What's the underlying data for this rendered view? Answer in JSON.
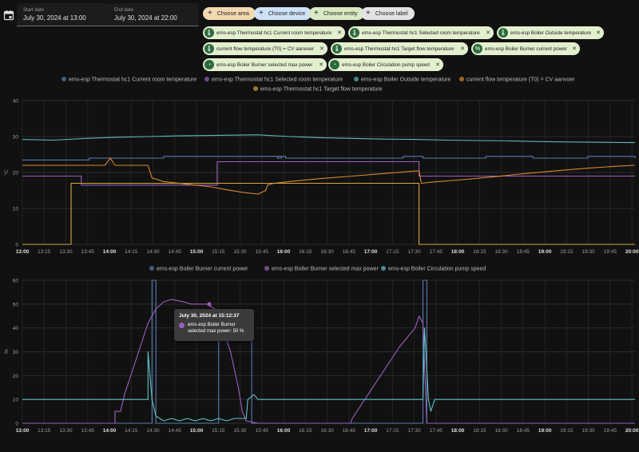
{
  "date_range": {
    "start_label": "Start date",
    "start_value": "July 30, 2024 at 13:00",
    "end_label": "End date",
    "end_value": "July 30, 2024 at 22:00"
  },
  "buttons": {
    "choose_area": "Choose area",
    "choose_device": "Choose device",
    "choose_entity": "Choose entity",
    "choose_label": "Choose label"
  },
  "entities": [
    {
      "label": "ems-esp Thermostat hc1 Current room temperature",
      "icon": "thermometer-icon"
    },
    {
      "label": "ems-esp Thermostat hc1 Selected room temperature",
      "icon": "thermometer-icon"
    },
    {
      "label": "ems-esp Boiler Outside temperature",
      "icon": "thermometer-icon"
    },
    {
      "label": "current flow temperature (T0) = CV aanvoer",
      "icon": "thermometer-icon"
    },
    {
      "label": "ems-esp Thermostat hc1 Target flow temperature",
      "icon": "thermometer-icon"
    },
    {
      "label": "ems-esp Boiler Burner current power",
      "icon": "percent-icon"
    },
    {
      "label": "ems-esp Boiler Burner selected max power",
      "icon": "gauge-icon"
    },
    {
      "label": "ems-esp Boiler Circulation pump speed",
      "icon": "gauge-icon"
    }
  ],
  "colors": {
    "current_room": "#5a7bb0",
    "selected_room": "#9c5fbf",
    "outside": "#5fb8b8",
    "flow": "#d9882b",
    "target_flow": "#d4a93c",
    "burner_power": "#5a7bb0",
    "max_power": "#9c5fbf",
    "pump_speed": "#5fc4c4"
  },
  "chart_data": [
    {
      "type": "line",
      "ylabel": "°C",
      "ylim": [
        0,
        40
      ],
      "yticks": [
        "0",
        "10",
        "20",
        "30",
        "40"
      ],
      "xticks": [
        "13:00",
        "13:15",
        "13:30",
        "13:45",
        "14:00",
        "14:15",
        "14:30",
        "14:45",
        "15:00",
        "15:15",
        "15:30",
        "15:45",
        "16:00",
        "16:15",
        "16:30",
        "16:45",
        "17:00",
        "17:15",
        "17:30",
        "17:45",
        "18:00",
        "18:15",
        "18:30",
        "18:45",
        "19:00",
        "19:15",
        "19:30",
        "19:45",
        "20:00"
      ],
      "bold_ticks": [
        "13:00",
        "14:00",
        "15:00",
        "16:00",
        "17:00",
        "18:00",
        "19:00",
        "20:00"
      ],
      "legend_placement": "top-center",
      "series": [
        {
          "name": "ems-esp Thermostat hc1 Current room temperature",
          "color_key": "current_room",
          "points": [
            [
              0,
              23.5
            ],
            [
              85,
              23.5
            ],
            [
              85,
              24
            ],
            [
              180,
              24
            ],
            [
              180,
              24.5
            ],
            [
              330,
              24.5
            ],
            [
              330,
              24
            ],
            [
              325,
              24
            ],
            [
              325,
              24.5
            ],
            [
              335,
              24.5
            ],
            [
              335,
              24
            ],
            [
              470,
              24
            ],
            [
              470,
              24
            ],
            [
              485,
              24
            ],
            [
              485,
              24.5
            ],
            [
              510,
              24.5
            ],
            [
              510,
              24
            ],
            [
              590,
              24
            ],
            [
              590,
              24.5
            ],
            [
              650,
              24.5
            ],
            [
              650,
              24
            ],
            [
              720,
              24
            ],
            [
              720,
              24.5
            ],
            [
              780,
              24.5
            ],
            [
              780,
              24
            ]
          ]
        },
        {
          "name": "ems-esp Thermostat hc1 Selected room temperature",
          "color_key": "selected_room",
          "points": [
            [
              0,
              19
            ],
            [
              75,
              19
            ],
            [
              75,
              16.5
            ],
            [
              248,
              16.5
            ],
            [
              248,
              23
            ],
            [
              505,
              23
            ],
            [
              505,
              19
            ],
            [
              780,
              19
            ]
          ]
        },
        {
          "name": "ems-esp Boiler Outside temperature",
          "color_key": "outside",
          "points": [
            [
              0,
              29.2
            ],
            [
              40,
              29
            ],
            [
              80,
              29.5
            ],
            [
              120,
              29.8
            ],
            [
              160,
              30
            ],
            [
              200,
              30.2
            ],
            [
              240,
              30.3
            ],
            [
              300,
              30.5
            ],
            [
              340,
              30
            ],
            [
              380,
              29.7
            ],
            [
              420,
              29.5
            ],
            [
              460,
              29.3
            ],
            [
              500,
              29.2
            ],
            [
              540,
              29
            ],
            [
              580,
              28.9
            ],
            [
              620,
              28.8
            ],
            [
              660,
              28.6
            ],
            [
              700,
              28.5
            ],
            [
              740,
              28.4
            ],
            [
              780,
              28.3
            ]
          ]
        },
        {
          "name": "current flow temperature (T0) = CV aanvoer",
          "color_key": "flow",
          "points": [
            [
              0,
              22
            ],
            [
              105,
              22
            ],
            [
              112,
              24
            ],
            [
              118,
              22
            ],
            [
              140,
              22
            ],
            [
              155,
              22
            ],
            [
              160,
              22
            ],
            [
              165,
              18.5
            ],
            [
              180,
              17.5
            ],
            [
              200,
              17
            ],
            [
              220,
              16.5
            ],
            [
              240,
              16
            ],
            [
              260,
              15.2
            ],
            [
              280,
              14.5
            ],
            [
              300,
              14
            ],
            [
              310,
              15
            ],
            [
              312,
              16.5
            ],
            [
              320,
              17
            ],
            [
              340,
              17.5
            ],
            [
              380,
              18.3
            ],
            [
              420,
              19
            ],
            [
              460,
              19.7
            ],
            [
              495,
              20.3
            ],
            [
              505,
              20.5
            ],
            [
              508,
              17
            ],
            [
              520,
              17.3
            ],
            [
              560,
              18
            ],
            [
              600,
              18.8
            ],
            [
              640,
              19.7
            ],
            [
              680,
              20.5
            ],
            [
              720,
              21.2
            ],
            [
              760,
              21.8
            ],
            [
              780,
              22
            ]
          ]
        },
        {
          "name": "ems-esp Thermostat hc1 Target flow temperature",
          "color_key": "target_flow",
          "points": [
            [
              0,
              0
            ],
            [
              62,
              0
            ],
            [
              62,
              17
            ],
            [
              505,
              17
            ],
            [
              505,
              0
            ],
            [
              780,
              0
            ]
          ]
        }
      ]
    },
    {
      "type": "line",
      "ylabel": "%",
      "ylim": [
        0,
        60
      ],
      "yticks": [
        "0",
        "10",
        "20",
        "30",
        "40",
        "50",
        "60"
      ],
      "xticks": [
        "13:00",
        "13:15",
        "13:30",
        "13:45",
        "14:00",
        "14:15",
        "14:30",
        "14:45",
        "15:00",
        "15:15",
        "15:30",
        "15:45",
        "16:00",
        "16:15",
        "16:30",
        "16:45",
        "17:00",
        "17:15",
        "17:30",
        "17:45",
        "18:00",
        "18:15",
        "18:30",
        "18:45",
        "19:00",
        "19:15",
        "19:30",
        "19:45",
        "20:00"
      ],
      "bold_ticks": [
        "13:00",
        "14:00",
        "15:00",
        "16:00",
        "17:00",
        "18:00",
        "19:00",
        "20:00"
      ],
      "legend_placement": "top-center",
      "series": [
        {
          "name": "ems-esp Boiler Burner current power",
          "color_key": "burner_power",
          "points": [
            [
              0,
              0
            ],
            [
              165,
              0
            ],
            [
              165,
              60
            ],
            [
              170,
              60
            ],
            [
              170,
              0
            ],
            [
              250,
              0
            ],
            [
              250,
              35
            ],
            [
              292,
              35
            ],
            [
              292,
              0
            ],
            [
              510,
              0
            ],
            [
              510,
              60
            ],
            [
              515,
              60
            ],
            [
              515,
              0
            ],
            [
              780,
              0
            ]
          ]
        },
        {
          "name": "ems-esp Boiler Burner selected max power",
          "color_key": "max_power",
          "points": [
            [
              0,
              0
            ],
            [
              118,
              0
            ],
            [
              118,
              5
            ],
            [
              125,
              5
            ],
            [
              130,
              12
            ],
            [
              140,
              22
            ],
            [
              150,
              32
            ],
            [
              160,
              42
            ],
            [
              170,
              48
            ],
            [
              180,
              51
            ],
            [
              190,
              52
            ],
            [
              205,
              51
            ],
            [
              215,
              50
            ],
            [
              225,
              50
            ],
            [
              235,
              50
            ],
            [
              245,
              48
            ],
            [
              255,
              40
            ],
            [
              265,
              30
            ],
            [
              275,
              15
            ],
            [
              280,
              5
            ],
            [
              285,
              1
            ],
            [
              300,
              0
            ],
            [
              418,
              0
            ],
            [
              420,
              2
            ],
            [
              440,
              12
            ],
            [
              460,
              22
            ],
            [
              480,
              32
            ],
            [
              500,
              40
            ],
            [
              505,
              45
            ],
            [
              510,
              42
            ],
            [
              515,
              0
            ],
            [
              780,
              0
            ]
          ]
        },
        {
          "name": "ems-esp Boiler Circulation pump speed",
          "color_key": "pump_speed",
          "points": [
            [
              0,
              10
            ],
            [
              160,
              10
            ],
            [
              160,
              30
            ],
            [
              165,
              10
            ],
            [
              170,
              3
            ],
            [
              175,
              2
            ],
            [
              180,
              1
            ],
            [
              190,
              2
            ],
            [
              200,
              1
            ],
            [
              210,
              2
            ],
            [
              220,
              1
            ],
            [
              230,
              2
            ],
            [
              240,
              1
            ],
            [
              250,
              2
            ],
            [
              260,
              1
            ],
            [
              270,
              2
            ],
            [
              285,
              2
            ],
            [
              287,
              10
            ],
            [
              295,
              12
            ],
            [
              300,
              10
            ],
            [
              390,
              10
            ],
            [
              500,
              10
            ],
            [
              510,
              10
            ],
            [
              512,
              40
            ],
            [
              517,
              10
            ],
            [
              520,
              5
            ],
            [
              525,
              10
            ],
            [
              780,
              10
            ]
          ]
        }
      ]
    }
  ],
  "tooltip": {
    "title": "July 30, 2024 at 15:12:37",
    "text": "ems-esp Boiler Burner selected max power: 50 %"
  }
}
